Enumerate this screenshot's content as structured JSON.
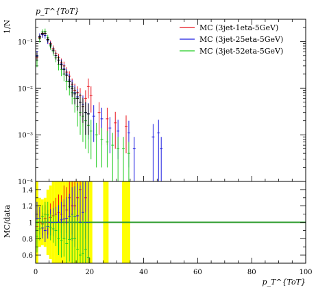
{
  "chart_data": [
    {
      "type": "scatter",
      "panel": "main",
      "title": "p_T^{ToT}",
      "ylabel": "1/N",
      "xlabel": "",
      "xlim": [
        0,
        100
      ],
      "ylim": [
        0.0001,
        0.3
      ],
      "yscale": "log",
      "legend_position": "top-right",
      "y_tick_labels": [
        "10⁻⁴",
        "10⁻³",
        "10⁻²",
        "10⁻¹"
      ],
      "y_tick_values": [
        0.0001,
        0.001,
        0.01,
        0.1
      ],
      "series": [
        {
          "name": "MC (3jet-1eta-5GeV)",
          "color": "#e8101a",
          "points": [
            [
              0.5,
              0.045,
              0.012
            ],
            [
              1.5,
              0.12,
              0.02
            ],
            [
              2.5,
              0.145,
              0.02
            ],
            [
              3.5,
              0.15,
              0.022
            ],
            [
              4.5,
              0.11,
              0.018
            ],
            [
              5.5,
              0.09,
              0.015
            ],
            [
              6.5,
              0.07,
              0.012
            ],
            [
              7.5,
              0.055,
              0.01
            ],
            [
              8.5,
              0.045,
              0.009
            ],
            [
              9.5,
              0.035,
              0.008
            ],
            [
              10.5,
              0.03,
              0.007
            ],
            [
              11.5,
              0.022,
              0.006
            ],
            [
              12.5,
              0.018,
              0.005
            ],
            [
              13.5,
              0.012,
              0.004
            ],
            [
              14.5,
              0.009,
              0.0035
            ],
            [
              15.5,
              0.008,
              0.003
            ],
            [
              16.5,
              0.007,
              0.003
            ],
            [
              17.5,
              0.004,
              0.0025
            ],
            [
              18.5,
              0.006,
              0.003
            ],
            [
              19.5,
              0.011,
              0.005
            ],
            [
              20.5,
              0.007,
              0.004
            ],
            [
              23.5,
              0.003,
              0.002
            ],
            [
              26.5,
              0.0022,
              0.0016
            ],
            [
              29.5,
              0.0018,
              0.0013
            ],
            [
              33.5,
              0.0015,
              0.0011
            ]
          ]
        },
        {
          "name": "MC (3jet-25eta-5GeV)",
          "color": "#1a1ae0",
          "points": [
            [
              0.5,
              0.05,
              0.013
            ],
            [
              1.5,
              0.13,
              0.02
            ],
            [
              2.5,
              0.14,
              0.02
            ],
            [
              3.5,
              0.135,
              0.02
            ],
            [
              4.5,
              0.105,
              0.017
            ],
            [
              5.5,
              0.085,
              0.015
            ],
            [
              6.5,
              0.065,
              0.012
            ],
            [
              7.5,
              0.05,
              0.01
            ],
            [
              8.5,
              0.04,
              0.009
            ],
            [
              9.5,
              0.033,
              0.008
            ],
            [
              10.5,
              0.026,
              0.007
            ],
            [
              11.5,
              0.02,
              0.006
            ],
            [
              12.5,
              0.015,
              0.005
            ],
            [
              13.5,
              0.011,
              0.004
            ],
            [
              14.5,
              0.008,
              0.0035
            ],
            [
              15.5,
              0.0065,
              0.003
            ],
            [
              16.5,
              0.005,
              0.0028
            ],
            [
              17.5,
              0.0045,
              0.0025
            ],
            [
              18.5,
              0.003,
              0.002
            ],
            [
              19.5,
              0.0028,
              0.002
            ],
            [
              21.5,
              0.0025,
              0.0018
            ],
            [
              24.5,
              0.0022,
              0.0016
            ],
            [
              27.5,
              0.0014,
              0.001
            ],
            [
              30.5,
              0.0012,
              0.0009
            ],
            [
              34.5,
              0.0011,
              0.0009
            ],
            [
              36.5,
              0.0005,
              0.0004
            ],
            [
              43.5,
              0.0009,
              0.0008
            ],
            [
              45.5,
              0.0011,
              0.001
            ],
            [
              46.5,
              0.0005,
              0.0004
            ]
          ]
        },
        {
          "name": "MC (3jet-52eta-5GeV)",
          "color": "#22cc22",
          "points": [
            [
              0.5,
              0.04,
              0.012
            ],
            [
              1.5,
              0.115,
              0.02
            ],
            [
              2.5,
              0.16,
              0.022
            ],
            [
              3.5,
              0.165,
              0.024
            ],
            [
              4.5,
              0.12,
              0.019
            ],
            [
              5.5,
              0.08,
              0.014
            ],
            [
              6.5,
              0.06,
              0.011
            ],
            [
              7.5,
              0.045,
              0.009
            ],
            [
              8.5,
              0.032,
              0.008
            ],
            [
              9.5,
              0.025,
              0.007
            ],
            [
              10.5,
              0.02,
              0.006
            ],
            [
              11.5,
              0.014,
              0.005
            ],
            [
              12.5,
              0.011,
              0.004
            ],
            [
              13.5,
              0.008,
              0.0035
            ],
            [
              14.5,
              0.006,
              0.003
            ],
            [
              15.5,
              0.004,
              0.0025
            ],
            [
              16.5,
              0.003,
              0.002
            ],
            [
              17.5,
              0.0025,
              0.0018
            ],
            [
              18.5,
              0.002,
              0.0015
            ],
            [
              19.5,
              0.0016,
              0.0012
            ],
            [
              20.5,
              0.0012,
              0.0009
            ],
            [
              22.5,
              0.001,
              0.0008
            ],
            [
              24.5,
              0.0008,
              0.0006
            ],
            [
              26.5,
              0.0007,
              0.0005
            ],
            [
              28.5,
              0.0006,
              0.0005
            ],
            [
              30.5,
              0.0005,
              0.0004
            ],
            [
              32.5,
              0.0005,
              0.0004
            ],
            [
              34.5,
              0.0004,
              0.0003
            ]
          ]
        },
        {
          "name": "",
          "color": "#000000",
          "points": [
            [
              0.5,
              0.048,
              0.01
            ],
            [
              1.5,
              0.125,
              0.015
            ],
            [
              2.5,
              0.15,
              0.016
            ],
            [
              3.5,
              0.15,
              0.017
            ],
            [
              4.5,
              0.11,
              0.014
            ],
            [
              5.5,
              0.085,
              0.012
            ],
            [
              6.5,
              0.065,
              0.01
            ],
            [
              7.5,
              0.05,
              0.009
            ],
            [
              8.5,
              0.04,
              0.008
            ],
            [
              9.5,
              0.032,
              0.007
            ],
            [
              10.5,
              0.025,
              0.006
            ],
            [
              11.5,
              0.019,
              0.005
            ],
            [
              12.5,
              0.014,
              0.004
            ],
            [
              13.5,
              0.01,
              0.0035
            ],
            [
              14.5,
              0.0075,
              0.003
            ],
            [
              15.5,
              0.006,
              0.0027
            ],
            [
              16.5,
              0.005,
              0.0025
            ],
            [
              17.5,
              0.004,
              0.0022
            ],
            [
              18.5,
              0.003,
              0.002
            ],
            [
              19.5,
              0.0028,
              0.0018
            ]
          ]
        }
      ]
    },
    {
      "type": "scatter",
      "panel": "ratio",
      "ylabel": "MC/data",
      "xlabel": "p_T^{ToT}",
      "xlim": [
        0,
        100
      ],
      "ylim": [
        0.5,
        1.5
      ],
      "x_tick_labels": [
        "0",
        "20",
        "40",
        "60",
        "80",
        "100"
      ],
      "y_tick_labels": [
        "0.6",
        "0.8",
        "1",
        "1.2",
        "1.4"
      ],
      "reference_line": 1,
      "band_color": "#ffff00",
      "line_color": "#2a9a2a",
      "band": [
        [
          0,
          1,
          0.5,
          1.5
        ],
        [
          1,
          2,
          0.7,
          1.3
        ],
        [
          2,
          3,
          0.72,
          1.28
        ],
        [
          3,
          4,
          0.7,
          1.3
        ],
        [
          4,
          5,
          0.6,
          1.4
        ],
        [
          5,
          6,
          0.55,
          1.45
        ],
        [
          6,
          7,
          0.5,
          1.5
        ],
        [
          7,
          8,
          0.5,
          1.5
        ],
        [
          8,
          9,
          0.5,
          1.5
        ],
        [
          9,
          10,
          0.5,
          1.5
        ],
        [
          10,
          11,
          0.5,
          1.5
        ],
        [
          11,
          12,
          0.5,
          1.5
        ],
        [
          12,
          13,
          0.5,
          1.5
        ],
        [
          13,
          14,
          0.5,
          1.5
        ],
        [
          14,
          15,
          0.5,
          1.5
        ],
        [
          15,
          16,
          0.5,
          1.5
        ],
        [
          16,
          17,
          0.5,
          1.5
        ],
        [
          17,
          18,
          0.5,
          1.5
        ],
        [
          18,
          19,
          0.5,
          1.5
        ],
        [
          19,
          20,
          0.5,
          1.5
        ],
        [
          20,
          21,
          0.5,
          1.5
        ],
        [
          25,
          26,
          0.5,
          1.5
        ],
        [
          26,
          27,
          0.5,
          1.5
        ],
        [
          32,
          33,
          0.5,
          1.5
        ],
        [
          33,
          34,
          0.5,
          1.5
        ],
        [
          34,
          35,
          0.5,
          1.5
        ]
      ],
      "series": [
        {
          "name": "MC (3jet-1eta-5GeV)",
          "color": "#e8101a",
          "points": [
            [
              0.5,
              0.95,
              0.2
            ],
            [
              1.5,
              1.0,
              0.15
            ],
            [
              2.5,
              0.98,
              0.14
            ],
            [
              3.5,
              1.05,
              0.16
            ],
            [
              4.5,
              1.0,
              0.15
            ],
            [
              5.5,
              1.06,
              0.17
            ],
            [
              6.5,
              1.08,
              0.18
            ],
            [
              7.5,
              1.1,
              0.2
            ],
            [
              8.5,
              1.12,
              0.22
            ],
            [
              9.5,
              1.1,
              0.23
            ],
            [
              10.5,
              1.2,
              0.25
            ],
            [
              11.5,
              1.15,
              0.28
            ],
            [
              12.5,
              1.3,
              0.3
            ],
            [
              13.5,
              1.2,
              0.35
            ],
            [
              14.5,
              1.2,
              0.4
            ],
            [
              15.5,
              1.3,
              0.4
            ],
            [
              16.5,
              1.4,
              0.45
            ],
            [
              18.5,
              1.3,
              0.5
            ]
          ]
        },
        {
          "name": "MC (3jet-25eta-5GeV)",
          "color": "#1a1ae0",
          "points": [
            [
              0.5,
              1.05,
              0.2
            ],
            [
              1.5,
              1.05,
              0.14
            ],
            [
              2.5,
              0.93,
              0.13
            ],
            [
              3.5,
              0.9,
              0.14
            ],
            [
              4.5,
              0.95,
              0.15
            ],
            [
              5.5,
              1.0,
              0.16
            ],
            [
              6.5,
              1.0,
              0.17
            ],
            [
              7.5,
              1.0,
              0.19
            ],
            [
              8.5,
              1.0,
              0.21
            ],
            [
              9.5,
              1.03,
              0.22
            ],
            [
              10.5,
              1.04,
              0.24
            ],
            [
              11.5,
              1.05,
              0.26
            ],
            [
              12.5,
              1.07,
              0.28
            ],
            [
              13.5,
              1.1,
              0.33
            ],
            [
              14.5,
              1.07,
              0.37
            ],
            [
              15.5,
              1.08,
              0.4
            ],
            [
              16.5,
              1.0,
              0.45
            ],
            [
              17.5,
              1.12,
              0.5
            ],
            [
              18.5,
              1.0,
              0.5
            ],
            [
              19.5,
              1.0,
              0.55
            ]
          ]
        },
        {
          "name": "MC (3jet-52eta-5GeV)",
          "color": "#22cc22",
          "points": [
            [
              0.5,
              0.83,
              0.2
            ],
            [
              1.5,
              0.92,
              0.14
            ],
            [
              2.5,
              1.07,
              0.14
            ],
            [
              3.5,
              1.1,
              0.15
            ],
            [
              4.5,
              1.09,
              0.16
            ],
            [
              5.5,
              0.94,
              0.16
            ],
            [
              6.5,
              0.92,
              0.17
            ],
            [
              7.5,
              0.9,
              0.19
            ],
            [
              8.5,
              0.8,
              0.2
            ],
            [
              9.5,
              0.78,
              0.21
            ],
            [
              10.5,
              0.8,
              0.22
            ],
            [
              11.5,
              0.74,
              0.24
            ],
            [
              12.5,
              0.79,
              0.27
            ],
            [
              13.5,
              0.8,
              0.3
            ],
            [
              14.5,
              0.8,
              0.35
            ],
            [
              15.5,
              0.67,
              0.35
            ],
            [
              16.5,
              0.6,
              0.4
            ],
            [
              17.5,
              0.62,
              0.4
            ],
            [
              18.5,
              0.67,
              0.45
            ],
            [
              19.5,
              0.57,
              0.45
            ]
          ]
        }
      ]
    }
  ]
}
